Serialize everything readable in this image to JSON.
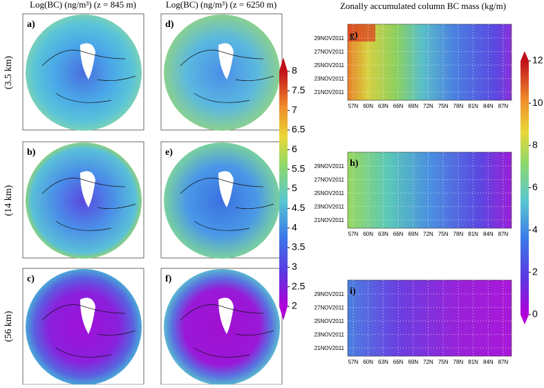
{
  "column_titles": [
    "Log(BC) (ng/m³) (z = 845 m)",
    "Log(BC) (ng/m³) (z = 6250 m)"
  ],
  "row_labels": [
    "(3.5 km)",
    "(14 km)",
    "(56 km)"
  ],
  "map_panels": [
    [
      "a)",
      "b)",
      "c)"
    ],
    [
      "d)",
      "e)",
      "f)"
    ]
  ],
  "map_colorbar": {
    "range": [
      2,
      8
    ],
    "ticks": [
      2,
      2.5,
      3,
      3.5,
      4,
      4.5,
      5,
      5.5,
      6,
      6.5,
      7,
      7.5,
      8
    ]
  },
  "right_title": "Zonally accumulated column BC mass (kg/m)",
  "hovmoller_panels": [
    "g)",
    "h)",
    "i)"
  ],
  "dates": [
    "29NOV2011",
    "27NOV2011",
    "25NOV2011",
    "23NOV2011",
    "21NOV2011"
  ],
  "latitudes": [
    "57N",
    "60N",
    "63N",
    "66N",
    "69N",
    "72N",
    "75N",
    "78N",
    "81N",
    "84N",
    "87N"
  ],
  "mass_colorbar": {
    "range": [
      0,
      12
    ],
    "ticks": [
      0,
      2,
      4,
      6,
      8,
      10,
      12
    ]
  }
}
